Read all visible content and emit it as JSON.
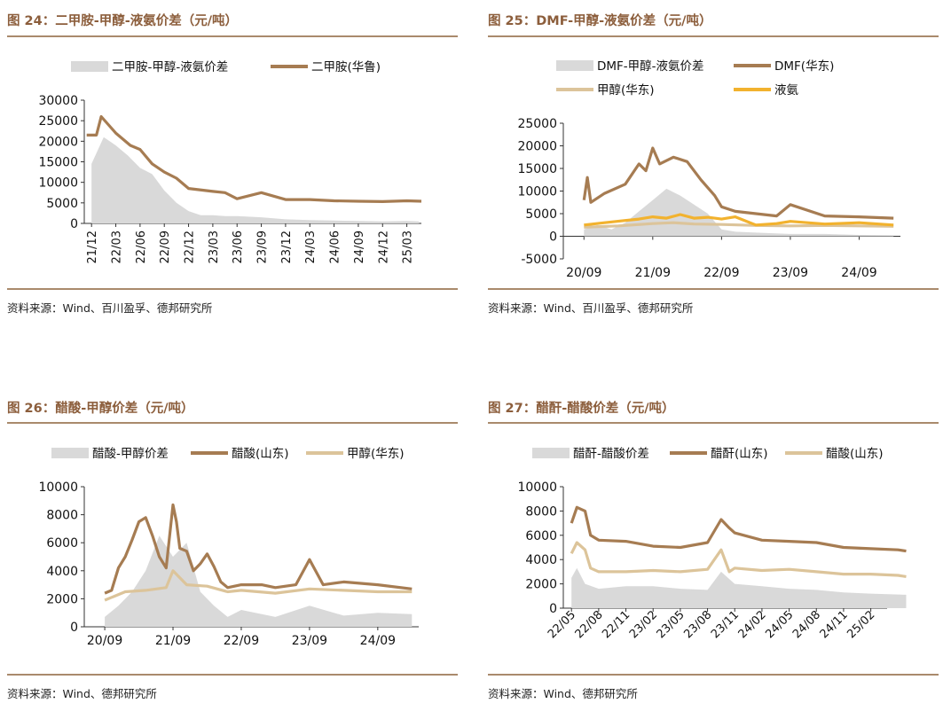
{
  "panels": [
    {
      "title": "图 24：二甲胺-甲醇-液氨价差（元/吨）",
      "source": "资料来源：Wind、百川盈孚、德邦研究所"
    },
    {
      "title": "图 25：DMF-甲醇-液氨价差（元/吨）",
      "source": "资料来源：Wind、百川盈孚、德邦研究所"
    },
    {
      "title": "图 26：醋酸-甲醇价差（元/吨）",
      "source": "资料来源：Wind、德邦研究所"
    },
    {
      "title": "图 27：醋酐-醋酸价差（元/吨）",
      "source": "资料来源：Wind、德邦研究所"
    }
  ],
  "colors": {
    "spread_area": "#d9d9d9",
    "main_line": "#a67c52",
    "methanol_line": "#dcc49a",
    "ammonia_line": "#f2b22e",
    "title": "#8c5e3c"
  },
  "chart_data": [
    {
      "type": "area",
      "title": "二甲胺-甲醇-液氨价差",
      "ylim": [
        0,
        30000
      ],
      "yticks": [
        "0",
        "5000",
        "10000",
        "15000",
        "20000",
        "25000",
        "30000"
      ],
      "xticks": [
        "21/12",
        "22/03",
        "22/06",
        "22/09",
        "22/12",
        "23/03",
        "23/06",
        "23/09",
        "23/12",
        "24/03",
        "24/06",
        "24/09",
        "24/12",
        "25/03"
      ],
      "x_rotated": true,
      "series": [
        {
          "name": "二甲胺-甲醇-液氨价差",
          "kind": "area",
          "color": "spread_area",
          "x": [
            0,
            0.5,
            1,
            1.5,
            2,
            2.5,
            3,
            3.5,
            4,
            4.5,
            5,
            5.5,
            6,
            7,
            8,
            9,
            10,
            11,
            12,
            13,
            13.5
          ],
          "y": [
            14500,
            21000,
            19000,
            16500,
            13500,
            12000,
            8000,
            5000,
            3000,
            2000,
            2000,
            1800,
            1800,
            1500,
            1000,
            800,
            700,
            600,
            500,
            600,
            500
          ]
        },
        {
          "name": "二甲胺(华鲁)",
          "kind": "line",
          "color": "main_line",
          "x": [
            -0.2,
            0.2,
            0.4,
            1,
            1.6,
            2,
            2.5,
            3,
            3.5,
            4,
            5,
            5.5,
            6,
            7,
            8,
            9,
            10,
            11,
            12,
            13,
            13.6
          ],
          "y": [
            21500,
            21500,
            26000,
            22000,
            19000,
            18000,
            14500,
            12500,
            11000,
            8500,
            7800,
            7500,
            6000,
            7500,
            5800,
            5800,
            5500,
            5400,
            5300,
            5500,
            5400
          ]
        }
      ]
    },
    {
      "type": "area",
      "title": "DMF-甲醇-液氨价差",
      "ylim": [
        -5000,
        25000
      ],
      "yticks": [
        "-5000",
        "0",
        "5000",
        "10000",
        "15000",
        "20000",
        "25000"
      ],
      "xticks": [
        "20/09",
        "21/09",
        "22/09",
        "23/09",
        "24/09"
      ],
      "x_rotated": false,
      "series": [
        {
          "name": "DMF-甲醇-液氨价差",
          "kind": "area",
          "color": "spread_area",
          "x": [
            0,
            0.2,
            0.4,
            0.6,
            0.8,
            1.0,
            1.2,
            1.4,
            1.6,
            1.8,
            2.0,
            2.2,
            2.5,
            3,
            3.5,
            4,
            4.5
          ],
          "y": [
            1500,
            2500,
            1500,
            3000,
            5500,
            8000,
            10500,
            9000,
            7000,
            5000,
            1500,
            1000,
            800,
            500,
            500,
            300,
            200
          ]
        },
        {
          "name": "DMF(华东)",
          "kind": "line",
          "color": "main_line",
          "x": [
            0,
            0.05,
            0.1,
            0.3,
            0.6,
            0.8,
            0.9,
            1.0,
            1.1,
            1.3,
            1.5,
            1.7,
            1.9,
            2.0,
            2.2,
            2.5,
            2.8,
            3,
            3.5,
            4,
            4.5
          ],
          "y": [
            8000,
            13000,
            7500,
            9500,
            11500,
            16000,
            14500,
            19500,
            16000,
            17500,
            16500,
            12500,
            9000,
            6500,
            5500,
            5000,
            4500,
            7000,
            4500,
            4300,
            4000
          ]
        },
        {
          "name": "甲醇(华东)",
          "kind": "line",
          "color": "methanol_line",
          "x": [
            0,
            0.5,
            1.0,
            1.3,
            1.6,
            2.0,
            2.5,
            3,
            3.5,
            4,
            4.5
          ],
          "y": [
            2000,
            2300,
            2800,
            3000,
            2700,
            2600,
            2400,
            2300,
            2400,
            2300,
            2200
          ]
        },
        {
          "name": "液氨",
          "kind": "line",
          "color": "ammonia_line",
          "x": [
            0,
            0.3,
            0.6,
            0.8,
            1.0,
            1.2,
            1.4,
            1.6,
            1.8,
            2.0,
            2.2,
            2.5,
            2.8,
            3,
            3.5,
            4,
            4.5
          ],
          "y": [
            2500,
            3000,
            3500,
            3800,
            4300,
            4000,
            4800,
            4000,
            4200,
            3800,
            4300,
            2500,
            2800,
            3300,
            2700,
            3000,
            2500
          ]
        }
      ]
    },
    {
      "type": "area",
      "title": "醋酸-甲醇价差",
      "ylim": [
        0,
        10000
      ],
      "yticks": [
        "0",
        "2000",
        "4000",
        "6000",
        "8000",
        "10000"
      ],
      "xticks": [
        "20/09",
        "21/09",
        "22/09",
        "23/09",
        "24/09"
      ],
      "x_rotated": false,
      "series": [
        {
          "name": "醋酸-甲醇价差",
          "kind": "area",
          "color": "spread_area",
          "x": [
            0,
            0.2,
            0.4,
            0.6,
            0.8,
            1.0,
            1.2,
            1.4,
            1.6,
            1.8,
            2.0,
            2.5,
            3,
            3.5,
            4,
            4.5
          ],
          "y": [
            700,
            1500,
            2500,
            4000,
            6500,
            5000,
            6000,
            2500,
            1500,
            700,
            1200,
            700,
            1500,
            800,
            1000,
            900
          ]
        },
        {
          "name": "醋酸(山东)",
          "kind": "line",
          "color": "main_line",
          "x": [
            0,
            0.1,
            0.2,
            0.3,
            0.4,
            0.5,
            0.6,
            0.7,
            0.8,
            0.9,
            1.0,
            1.05,
            1.1,
            1.2,
            1.3,
            1.4,
            1.5,
            1.6,
            1.7,
            1.8,
            2.0,
            2.3,
            2.5,
            2.8,
            3,
            3.2,
            3.5,
            4,
            4.5
          ],
          "y": [
            2400,
            2600,
            4200,
            5000,
            6200,
            7500,
            7800,
            6500,
            5000,
            4200,
            8700,
            7500,
            5600,
            5400,
            4000,
            4500,
            5200,
            4300,
            3200,
            2800,
            3000,
            3000,
            2800,
            3000,
            4800,
            3000,
            3200,
            3000,
            2700
          ]
        },
        {
          "name": "甲醇(华东)",
          "kind": "line",
          "color": "methanol_line",
          "x": [
            0,
            0.3,
            0.6,
            0.9,
            1.0,
            1.2,
            1.5,
            1.8,
            2.0,
            2.5,
            3,
            3.5,
            4,
            4.5
          ],
          "y": [
            1900,
            2500,
            2600,
            2800,
            4000,
            3000,
            2900,
            2500,
            2600,
            2400,
            2700,
            2600,
            2500,
            2500
          ]
        }
      ]
    },
    {
      "type": "area",
      "title": "醋酐-醋酸价差",
      "ylim": [
        0,
        10000
      ],
      "yticks": [
        "0",
        "2000",
        "4000",
        "6000",
        "8000",
        "10000"
      ],
      "xticks": [
        "22/05",
        "22/08",
        "22/11",
        "23/02",
        "23/05",
        "23/08",
        "23/11",
        "24/02",
        "24/05",
        "24/08",
        "24/11",
        "25/02"
      ],
      "x_rotated": true,
      "series": [
        {
          "name": "醋酐-醋酸价差",
          "kind": "area",
          "color": "spread_area",
          "x": [
            0,
            0.2,
            0.5,
            1,
            2,
            3,
            4,
            5,
            5.5,
            6,
            7,
            8,
            9,
            10,
            11,
            12.3
          ],
          "y": [
            2500,
            3300,
            2000,
            1600,
            1800,
            1800,
            1600,
            1500,
            3000,
            2000,
            1800,
            1600,
            1500,
            1300,
            1200,
            1100
          ]
        },
        {
          "name": "醋酐(山东)",
          "kind": "line",
          "color": "main_line",
          "x": [
            0,
            0.2,
            0.5,
            0.7,
            1,
            2,
            3,
            4,
            5,
            5.5,
            5.8,
            6,
            7,
            8,
            9,
            10,
            11,
            12,
            12.3
          ],
          "y": [
            7000,
            8300,
            8000,
            6000,
            5600,
            5500,
            5100,
            5000,
            5400,
            7300,
            6600,
            6200,
            5600,
            5500,
            5400,
            5000,
            4900,
            4800,
            4700
          ]
        },
        {
          "name": "醋酸(山东)",
          "kind": "line",
          "color": "methanol_line",
          "x": [
            0,
            0.2,
            0.5,
            0.7,
            1,
            2,
            3,
            4,
            5,
            5.5,
            5.8,
            6,
            7,
            8,
            9,
            10,
            11,
            12,
            12.3
          ],
          "y": [
            4500,
            5400,
            4800,
            3300,
            3000,
            3000,
            3100,
            3000,
            3200,
            4800,
            3000,
            3300,
            3100,
            3200,
            3000,
            2800,
            2800,
            2700,
            2600
          ]
        }
      ]
    }
  ]
}
